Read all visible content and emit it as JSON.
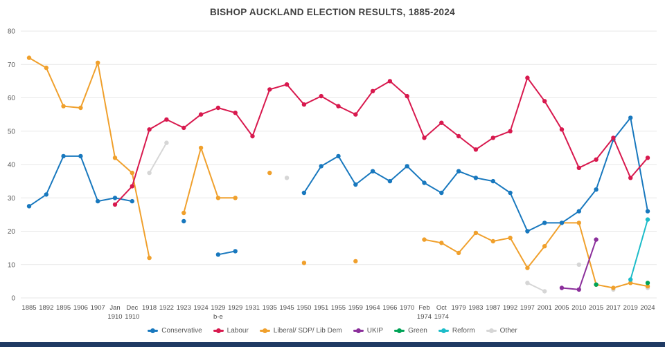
{
  "title": "BISHOP AUCKLAND ELECTION RESULTS, 1885-2024",
  "chrome": {
    "bottom_bar_color": "#1f3a63"
  },
  "chart_data": {
    "type": "line",
    "title": "BISHOP AUCKLAND ELECTION RESULTS, 1885-2024",
    "xlabel": "",
    "ylabel": "",
    "ylim": [
      0,
      80
    ],
    "yticks": [
      0,
      10,
      20,
      30,
      40,
      50,
      60,
      70,
      80
    ],
    "grid": true,
    "legend_position": "bottom",
    "grid_color": "#e7e7e7",
    "draw_order": [
      6,
      2,
      0,
      1,
      3,
      4,
      5
    ],
    "categories": [
      {
        "label": "1885"
      },
      {
        "label": "1892"
      },
      {
        "label": "1895"
      },
      {
        "label": "1906"
      },
      {
        "label": "1907"
      },
      {
        "label": "Jan",
        "sub": "1910"
      },
      {
        "label": "Dec",
        "sub": "1910"
      },
      {
        "label": "1918"
      },
      {
        "label": "1922"
      },
      {
        "label": "1923"
      },
      {
        "label": "1924"
      },
      {
        "label": "1929",
        "sub": "b-e"
      },
      {
        "label": "1929"
      },
      {
        "label": "1931"
      },
      {
        "label": "1935"
      },
      {
        "label": "1945"
      },
      {
        "label": "1950"
      },
      {
        "label": "1951"
      },
      {
        "label": "1955"
      },
      {
        "label": "1959"
      },
      {
        "label": "1964"
      },
      {
        "label": "1966"
      },
      {
        "label": "1970"
      },
      {
        "label": "Feb",
        "sub": "1974"
      },
      {
        "label": "Oct",
        "sub": "1974"
      },
      {
        "label": "1979"
      },
      {
        "label": "1983"
      },
      {
        "label": "1987"
      },
      {
        "label": "1992"
      },
      {
        "label": "1997"
      },
      {
        "label": "2001"
      },
      {
        "label": "2005"
      },
      {
        "label": "2010"
      },
      {
        "label": "2015"
      },
      {
        "label": "2017"
      },
      {
        "label": "2019"
      },
      {
        "label": "2024"
      }
    ],
    "series": [
      {
        "name": "Conservative",
        "color": "#1878be",
        "values": [
          27.5,
          31,
          42.5,
          42.5,
          29,
          30,
          29,
          null,
          null,
          23,
          null,
          13,
          14,
          null,
          null,
          null,
          31.5,
          39.5,
          42.5,
          34,
          38,
          35,
          39.5,
          34.5,
          31.5,
          38,
          36,
          35,
          31.5,
          20,
          22.5,
          22.5,
          26,
          32.5,
          47.5,
          54,
          26
        ]
      },
      {
        "name": "Labour",
        "color": "#d8194e",
        "values": [
          null,
          null,
          null,
          null,
          null,
          28,
          33.5,
          50.5,
          53.5,
          51,
          55,
          57,
          55.5,
          48.5,
          62.5,
          64,
          58,
          60.5,
          57.5,
          55,
          62,
          65,
          60.5,
          48,
          52.5,
          48.5,
          44.5,
          48,
          50,
          66,
          59,
          50.5,
          39,
          41.5,
          48,
          36,
          42
        ]
      },
      {
        "name": "Liberal/ SDP/ Lib Dem",
        "color": "#f0a02c",
        "values": [
          72,
          69,
          57.5,
          57,
          70.5,
          42,
          37.5,
          12,
          null,
          25.5,
          45,
          30,
          30,
          null,
          37.5,
          null,
          10.5,
          null,
          null,
          11,
          null,
          null,
          null,
          17.5,
          16.5,
          13.5,
          19.5,
          17,
          18,
          9,
          15.5,
          22.5,
          22.5,
          4,
          3,
          4.5,
          3.5
        ]
      },
      {
        "name": "UKIP",
        "color": "#8b2f9b",
        "values": [
          null,
          null,
          null,
          null,
          null,
          null,
          null,
          null,
          null,
          null,
          null,
          null,
          null,
          null,
          null,
          null,
          null,
          null,
          null,
          null,
          null,
          null,
          null,
          null,
          null,
          null,
          null,
          null,
          null,
          null,
          null,
          3,
          2.5,
          17.5,
          null,
          null,
          null
        ]
      },
      {
        "name": "Green",
        "color": "#00a357",
        "values": [
          null,
          null,
          null,
          null,
          null,
          null,
          null,
          null,
          null,
          null,
          null,
          null,
          null,
          null,
          null,
          null,
          null,
          null,
          null,
          null,
          null,
          null,
          null,
          null,
          null,
          null,
          null,
          null,
          null,
          null,
          null,
          null,
          null,
          4,
          null,
          null,
          4.5
        ]
      },
      {
        "name": "Reform",
        "color": "#1cbcc9",
        "values": [
          null,
          null,
          null,
          null,
          null,
          null,
          null,
          null,
          null,
          null,
          null,
          null,
          null,
          null,
          null,
          null,
          null,
          null,
          null,
          null,
          null,
          null,
          null,
          null,
          null,
          null,
          null,
          null,
          null,
          null,
          null,
          null,
          null,
          null,
          null,
          5.5,
          23.5
        ]
      },
      {
        "name": "Other",
        "color": "#d6d6d6",
        "values": [
          null,
          null,
          null,
          null,
          null,
          null,
          null,
          37.5,
          46.5,
          null,
          null,
          null,
          null,
          null,
          null,
          36,
          null,
          null,
          null,
          null,
          null,
          null,
          null,
          null,
          null,
          null,
          null,
          null,
          null,
          4.5,
          2,
          null,
          10,
          null,
          2.5,
          null,
          3
        ]
      }
    ]
  }
}
